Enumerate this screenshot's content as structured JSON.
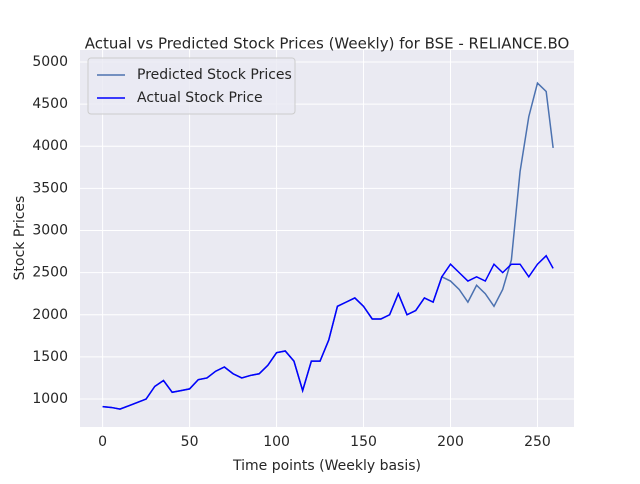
{
  "chart_data": {
    "type": "line",
    "title": "Actual vs Predicted Stock Prices (Weekly) for BSE - RELIANCE.BO",
    "x_label": "Time points (Weekly basis)",
    "y_label": "Stock Prices",
    "x": [
      0,
      5,
      10,
      15,
      20,
      25,
      30,
      35,
      40,
      45,
      50,
      55,
      60,
      65,
      70,
      75,
      80,
      85,
      90,
      95,
      100,
      105,
      110,
      115,
      120,
      125,
      130,
      135,
      140,
      145,
      150,
      155,
      160,
      165,
      170,
      175,
      180,
      185,
      190,
      195,
      200,
      205,
      210,
      215,
      220,
      225,
      230,
      235,
      240,
      245,
      250,
      255,
      259
    ],
    "series": [
      {
        "name": "Predicted Stock Prices",
        "color": "#4c72b0",
        "values": [
          910,
          900,
          880,
          920,
          960,
          1000,
          1150,
          1220,
          1080,
          1100,
          1120,
          1230,
          1250,
          1330,
          1380,
          1300,
          1250,
          1280,
          1300,
          1400,
          1550,
          1570,
          1450,
          1100,
          1450,
          1450,
          1700,
          2100,
          2150,
          2200,
          2100,
          1950,
          1950,
          2000,
          2250,
          2000,
          2050,
          2200,
          2150,
          2450,
          2400,
          2300,
          2150,
          2350,
          2250,
          2100,
          2300,
          2650,
          3700,
          4350,
          4750,
          4650,
          3980
        ]
      },
      {
        "name": "Actual Stock Price",
        "color": "#0000ff",
        "values": [
          910,
          900,
          880,
          920,
          960,
          1000,
          1150,
          1220,
          1080,
          1100,
          1120,
          1230,
          1250,
          1330,
          1380,
          1300,
          1250,
          1280,
          1300,
          1400,
          1550,
          1570,
          1450,
          1100,
          1450,
          1450,
          1700,
          2100,
          2150,
          2200,
          2100,
          1950,
          1950,
          2000,
          2250,
          2000,
          2050,
          2200,
          2150,
          2450,
          2600,
          2500,
          2400,
          2450,
          2400,
          2600,
          2500,
          2600,
          2600,
          2450,
          2600,
          2700,
          2550
        ]
      }
    ],
    "xlim": [
      -13,
      271
    ],
    "ylim": [
      668,
      5142
    ],
    "xticks": [
      0,
      50,
      100,
      150,
      200,
      250
    ],
    "yticks": [
      1000,
      1500,
      2000,
      2500,
      3000,
      3500,
      4000,
      4500,
      5000
    ],
    "grid": true,
    "legend": "upper-left"
  }
}
